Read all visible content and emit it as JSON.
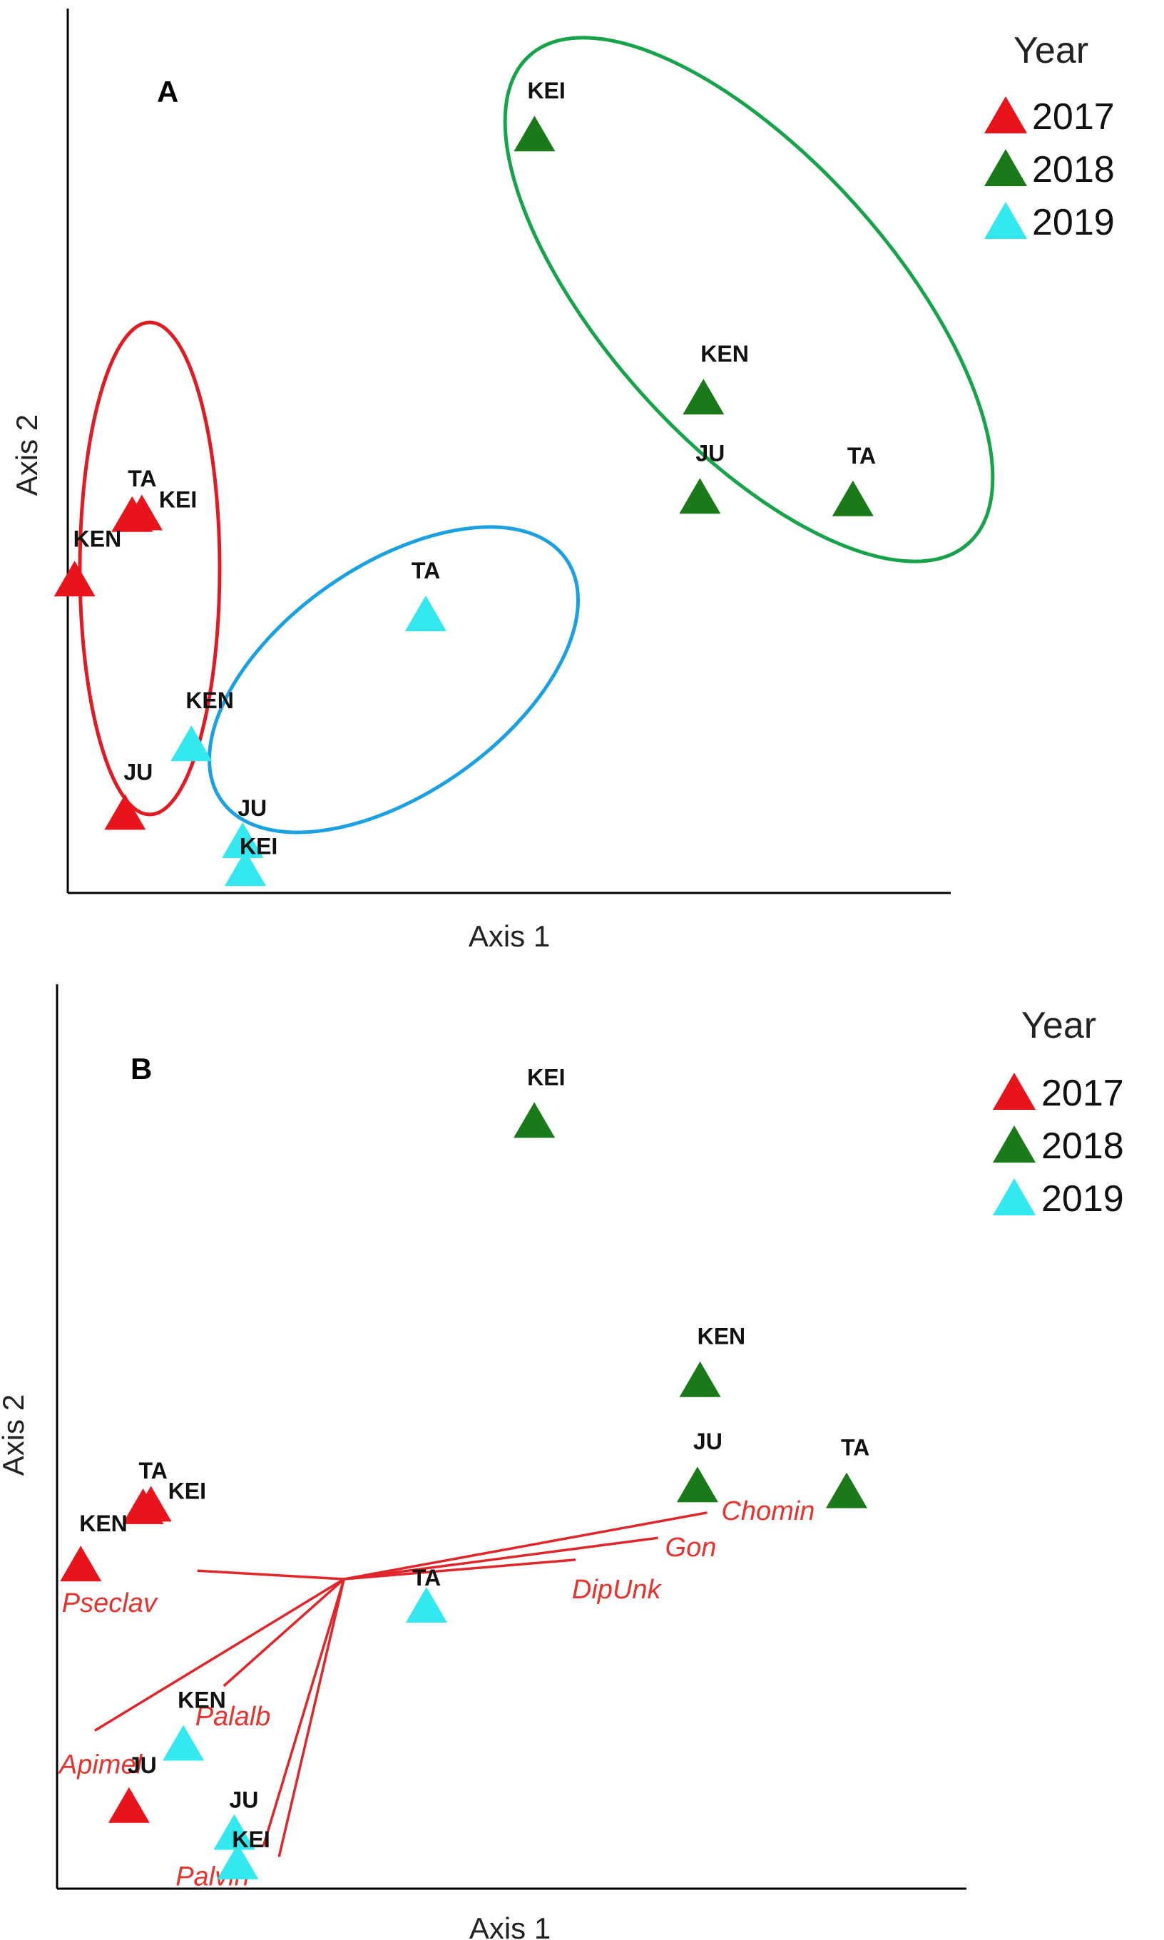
{
  "colors": {
    "2017": "#e8141b",
    "2018": "#1a7a1a",
    "2019": "#33e8ee",
    "ellipse_2017": "#e01b24",
    "ellipse_2018": "#16a34a",
    "ellipse_2019": "#1ba1e2",
    "vectors": "#e0262a"
  },
  "chart_data": [
    {
      "type": "scatter",
      "panel": "A",
      "title": "",
      "xlabel": "Axis 1",
      "ylabel": "Axis 2",
      "xlim": [
        0,
        1
      ],
      "ylim": [
        0,
        1
      ],
      "legend": {
        "title": "Year",
        "placement": "right-top",
        "entries": [
          "2017",
          "2018",
          "2019"
        ]
      },
      "series": [
        {
          "name": "2017",
          "points": [
            {
              "label": "TA",
              "x": 0.101,
              "y": 0.445
            },
            {
              "label": "KEI",
              "x": 0.112,
              "y": 0.447
            },
            {
              "label": "KEN",
              "x": 0.036,
              "y": 0.367
            },
            {
              "label": "JU",
              "x": 0.093,
              "y": 0.085
            }
          ]
        },
        {
          "name": "2018",
          "points": [
            {
              "label": "KEI",
              "x": 0.556,
              "y": 0.905
            },
            {
              "label": "KEN",
              "x": 0.747,
              "y": 0.587
            },
            {
              "label": "JU",
              "x": 0.743,
              "y": 0.467
            },
            {
              "label": "TA",
              "x": 0.916,
              "y": 0.464
            }
          ]
        },
        {
          "name": "2019",
          "points": [
            {
              "label": "TA",
              "x": 0.433,
              "y": 0.325
            },
            {
              "label": "KEN",
              "x": 0.168,
              "y": 0.168
            },
            {
              "label": "JU",
              "x": 0.226,
              "y": 0.051
            },
            {
              "label": "KEI",
              "x": 0.229,
              "y": 0.017
            }
          ]
        }
      ],
      "ellipses": [
        "2017",
        "2018",
        "2019"
      ]
    },
    {
      "type": "scatter",
      "panel": "B",
      "title": "",
      "xlabel": "Axis 1",
      "ylabel": "Axis 2",
      "xlim": [
        0,
        1
      ],
      "ylim": [
        0,
        1
      ],
      "legend": {
        "title": "Year",
        "placement": "right-top",
        "entries": [
          "2017",
          "2018",
          "2019"
        ]
      },
      "series": [
        {
          "name": "2017",
          "points": [
            {
              "label": "TA",
              "x": 0.098,
              "y": 0.445
            },
            {
              "label": "KEI",
              "x": 0.107,
              "y": 0.448
            },
            {
              "label": "KEN",
              "x": 0.027,
              "y": 0.377
            },
            {
              "label": "JU",
              "x": 0.082,
              "y": 0.09
            }
          ]
        },
        {
          "name": "2018",
          "points": [
            {
              "label": "KEI",
              "x": 0.544,
              "y": 0.904
            },
            {
              "label": "KEN",
              "x": 0.733,
              "y": 0.596
            },
            {
              "label": "JU",
              "x": 0.73,
              "y": 0.471
            },
            {
              "label": "TA",
              "x": 0.9,
              "y": 0.464
            }
          ]
        },
        {
          "name": "2019",
          "points": [
            {
              "label": "TA",
              "x": 0.421,
              "y": 0.328
            },
            {
              "label": "KEN",
              "x": 0.144,
              "y": 0.164
            },
            {
              "label": "JU",
              "x": 0.202,
              "y": 0.058
            },
            {
              "label": "KEI",
              "x": 0.206,
              "y": 0.023
            }
          ]
        }
      ],
      "vectors": {
        "origin": {
          "x": 0.327,
          "y": 0.361
        },
        "arrows": [
          {
            "label": "Chomin",
            "x": 0.741,
            "y": 0.44
          },
          {
            "label": "Gon",
            "x": 0.685,
            "y": 0.41
          },
          {
            "label": "DipUnk",
            "x": 0.591,
            "y": 0.384
          },
          {
            "label": "Pseclav",
            "x": 0.16,
            "y": 0.371
          },
          {
            "label": "Palalb",
            "x": 0.19,
            "y": 0.234
          },
          {
            "label": "Apimel",
            "x": 0.043,
            "y": 0.181
          },
          {
            "label": "Palvin",
            "x": 0.253,
            "y": 0.031
          },
          {
            "label": "",
            "x": 0.235,
            "y": 0.043
          }
        ]
      }
    }
  ]
}
